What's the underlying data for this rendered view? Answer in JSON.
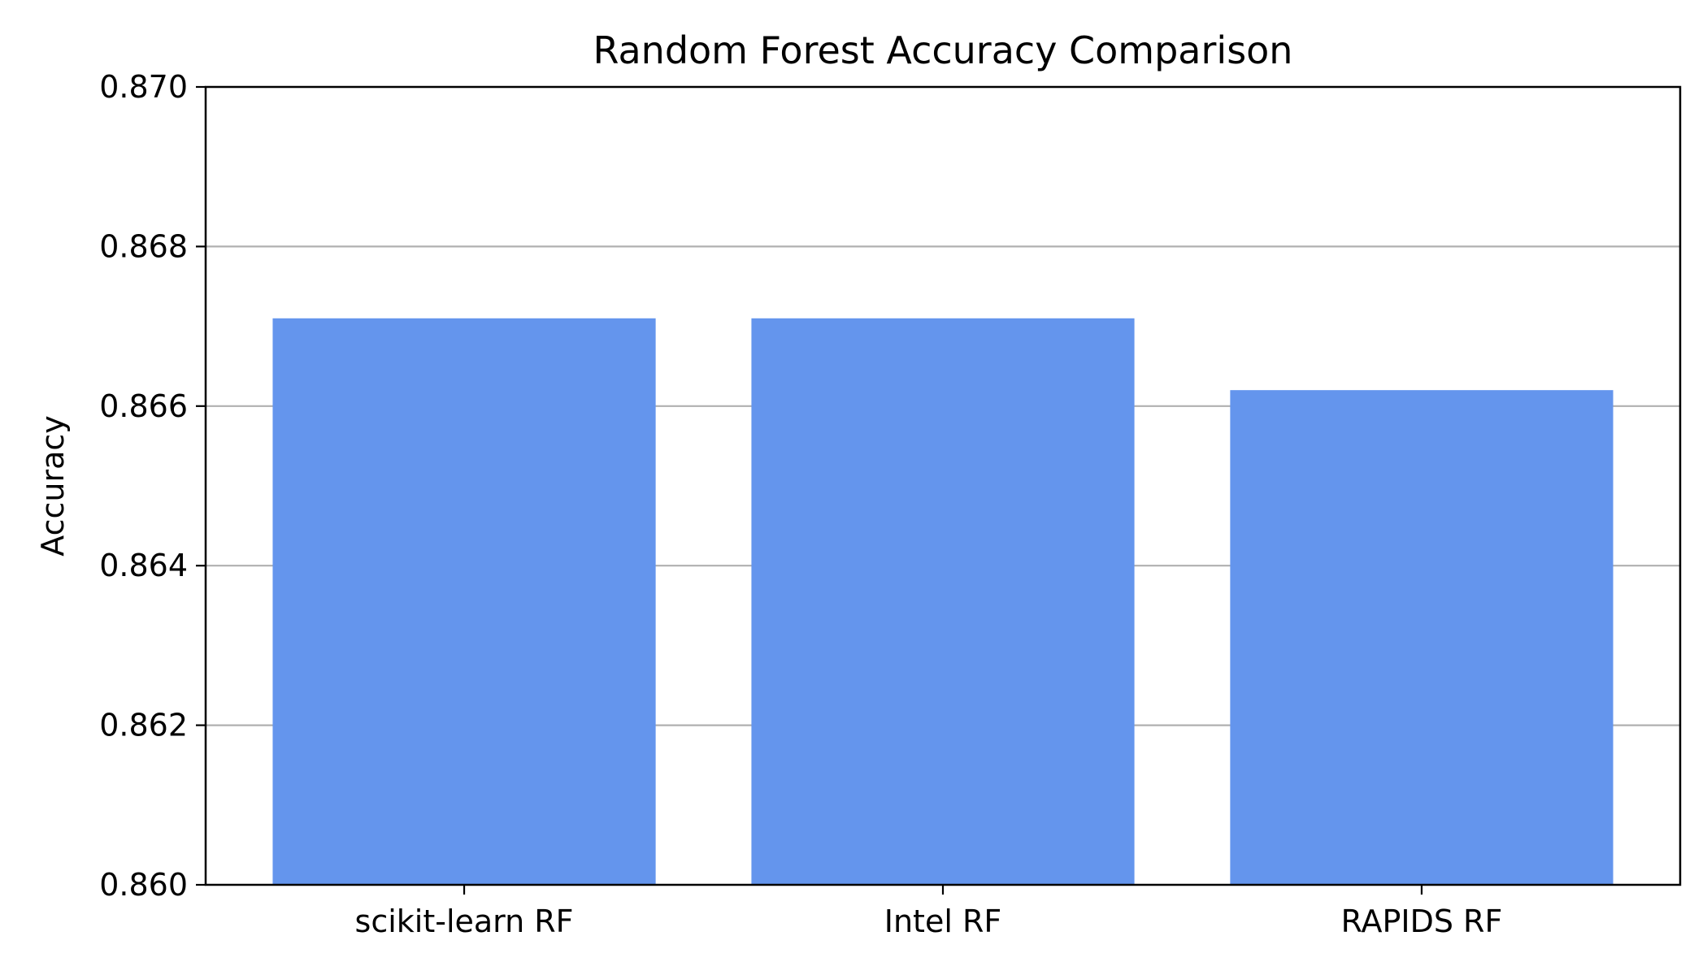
{
  "chart_data": {
    "type": "bar",
    "title": "Random Forest Accuracy Comparison",
    "xlabel": "",
    "ylabel": "Accuracy",
    "categories": [
      "scikit-learn RF",
      "Intel RF",
      "RAPIDS RF"
    ],
    "values": [
      0.8671,
      0.8671,
      0.8662
    ],
    "ylim": [
      0.86,
      0.87
    ],
    "yticks": [
      "0.860",
      "0.862",
      "0.864",
      "0.866",
      "0.868",
      "0.870"
    ],
    "grid": "y-axis",
    "bar_color": "#6495ED",
    "grid_color": "#b0b0b0"
  }
}
